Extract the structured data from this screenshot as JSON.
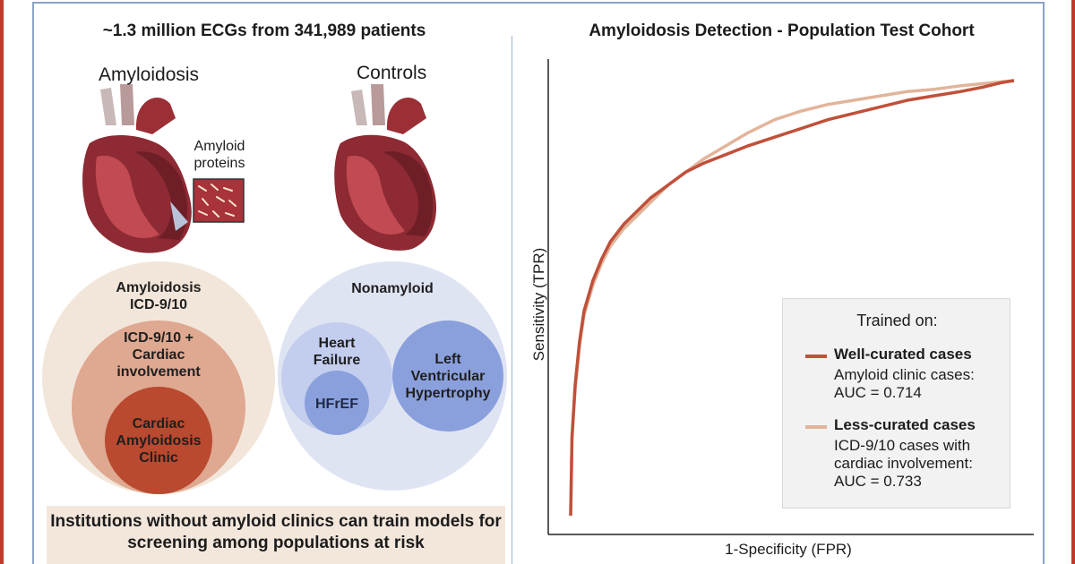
{
  "colors": {
    "accent_red": "#c0392b",
    "frame_blue": "#8aa3c8",
    "well_curated": "#c0503a",
    "less_curated": "#e2b49a",
    "amyloid_outer": "#f2e6da",
    "amyloid_mid": "#dfa890",
    "amyloid_inner": "#b9492f",
    "control_outer": "#dfe4f3",
    "control_mid": "#c3cdee",
    "control_inner": "#8aa0dc"
  },
  "left_panel": {
    "title": "~1.3 million ECGs from 341,989 patients",
    "amyloid_heart_label": "Amyloidosis",
    "amyloid_protein_label": "Amyloid proteins",
    "controls_heart_label": "Controls",
    "amyloid_circles": {
      "outer": "Amyloidosis ICD-9/10",
      "middle": "ICD-9/10 + Cardiac involvement",
      "inner": "Cardiac Amyloidosis Clinic"
    },
    "control_circles": {
      "outer": "Nonamyloid",
      "heart_failure": "Heart Failure",
      "hfref": "HFrEF",
      "lvh": "Left Ventricular Hypertrophy"
    },
    "banner": "Institutions without amyloid clinics can train models for screening among populations at risk"
  },
  "chart_data": {
    "type": "line",
    "title": "Amyloidosis Detection - Population Test Cohort",
    "xlabel": "1-Specificity (FPR)",
    "ylabel": "Sensitivity (TPR)",
    "xlim": [
      0,
      1
    ],
    "ylim": [
      0,
      1
    ],
    "grid": false,
    "legend_title": "Trained on:",
    "legend_position": "bottom-right",
    "series": [
      {
        "name": "Well-curated cases",
        "description": "Amyloid clinic cases: AUC = 0.714",
        "color": "#c0503a",
        "x": [
          0.0,
          0.003,
          0.01,
          0.02,
          0.03,
          0.05,
          0.07,
          0.09,
          0.12,
          0.15,
          0.18,
          0.22,
          0.26,
          0.3,
          0.35,
          0.4,
          0.46,
          0.52,
          0.58,
          0.64,
          0.7,
          0.76,
          0.82,
          0.88,
          0.93,
          0.97,
          1.0
        ],
        "y": [
          0.0,
          0.18,
          0.3,
          0.4,
          0.47,
          0.54,
          0.59,
          0.63,
          0.67,
          0.7,
          0.73,
          0.76,
          0.79,
          0.81,
          0.83,
          0.85,
          0.87,
          0.89,
          0.91,
          0.925,
          0.94,
          0.955,
          0.965,
          0.975,
          0.985,
          0.995,
          1.0
        ]
      },
      {
        "name": "Less-curated cases",
        "description": "ICD-9/10 cases with cardiac involvement: AUC = 0.733",
        "color": "#e2b49a",
        "x": [
          0.0,
          0.003,
          0.01,
          0.02,
          0.03,
          0.05,
          0.07,
          0.09,
          0.12,
          0.15,
          0.18,
          0.22,
          0.26,
          0.3,
          0.35,
          0.4,
          0.46,
          0.52,
          0.58,
          0.64,
          0.7,
          0.76,
          0.82,
          0.88,
          0.93,
          0.97,
          1.0
        ],
        "y": [
          0.0,
          0.18,
          0.29,
          0.39,
          0.46,
          0.53,
          0.58,
          0.62,
          0.66,
          0.69,
          0.72,
          0.76,
          0.79,
          0.82,
          0.85,
          0.88,
          0.91,
          0.93,
          0.945,
          0.955,
          0.965,
          0.975,
          0.98,
          0.988,
          0.993,
          0.997,
          1.0
        ]
      }
    ]
  }
}
